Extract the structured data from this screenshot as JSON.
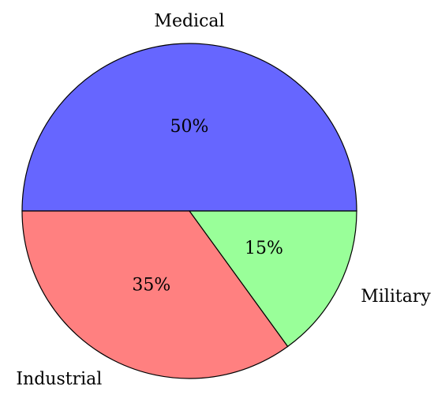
{
  "chart_data": {
    "type": "pie",
    "series": [
      {
        "name": "Medical",
        "color": "#6666ff",
        "values": [
          50
        ],
        "value_labels": [
          "50%"
        ]
      },
      {
        "name": "Military",
        "color": "#99ff99",
        "values": [
          15
        ],
        "value_labels": [
          "15%"
        ]
      },
      {
        "name": "Industrial",
        "color": "#ff8080",
        "values": [
          35
        ],
        "value_labels": [
          "35%"
        ]
      }
    ]
  }
}
